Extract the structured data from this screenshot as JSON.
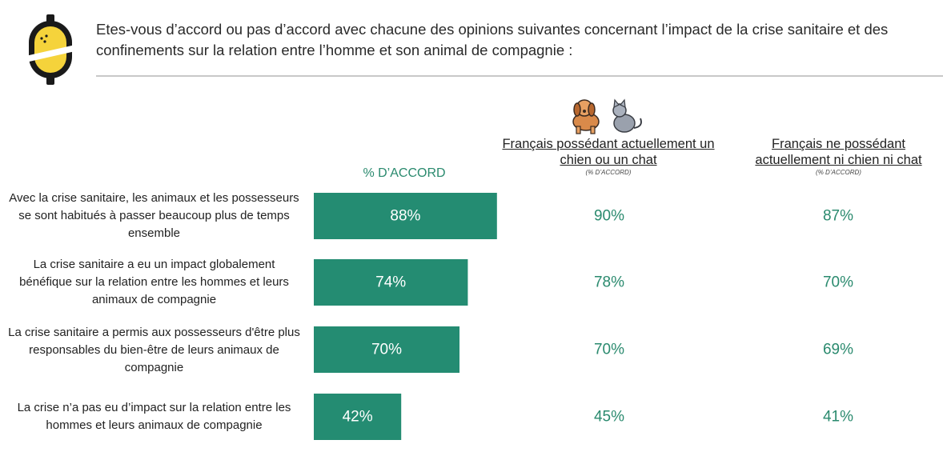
{
  "question": "Etes-vous d’accord ou pas d’accord avec chacune des opinions suivantes concernant l’impact de la crise sanitaire et des confinements sur la relation entre l’homme et son animal de compagnie :",
  "colors": {
    "bar": "#248c72",
    "value_text": "#2a8a6e",
    "logo_yellow": "#f5d33b",
    "logo_dark": "#1a1a1a",
    "rule": "#c8c8c8"
  },
  "icons": [
    "dog-icon",
    "cat-icon",
    "brand-logo"
  ],
  "columns": {
    "accord": {
      "label": "% D’ACCORD"
    },
    "owners": {
      "label": "Français possédant actuellement un chien ou un chat",
      "sub": "(% D’ACCORD)"
    },
    "nonowners": {
      "label": "Français ne possédant actuellement ni chien ni chat",
      "sub": "(% D’ACCORD)"
    }
  },
  "chart_data": {
    "type": "bar",
    "orientation": "horizontal",
    "unit": "%",
    "xlim": [
      0,
      100
    ],
    "categories": [
      "Avec la crise sanitaire, les animaux et les possesseurs se sont habitués à passer beaucoup plus de temps ensemble",
      "La crise sanitaire a eu un impact globalement bénéfique sur la relation entre les hommes et leurs animaux de compagnie",
      "La crise sanitaire a permis aux possesseurs d'être plus responsables du bien-être de leurs animaux de compagnie",
      "La crise n’a pas eu d’impact sur la relation entre les hommes et leurs animaux de compagnie"
    ],
    "series": [
      {
        "name": "% D’ACCORD",
        "values": [
          88,
          74,
          70,
          42
        ],
        "labels": [
          "88%",
          "74%",
          "70%",
          "42%"
        ]
      },
      {
        "name": "Français possédant actuellement un chien ou un chat",
        "values": [
          90,
          78,
          70,
          45
        ],
        "labels": [
          "90%",
          "78%",
          "70%",
          "45%"
        ]
      },
      {
        "name": "Français ne possédant actuellement ni chien ni chat",
        "values": [
          87,
          70,
          69,
          41
        ],
        "labels": [
          "87%",
          "70%",
          "69%",
          "41%"
        ]
      }
    ]
  }
}
